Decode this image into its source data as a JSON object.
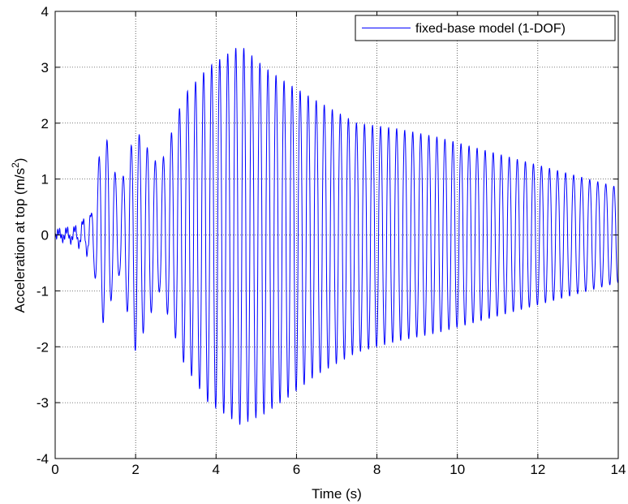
{
  "chart_data": {
    "type": "line",
    "title": "",
    "xlabel": "Time (s)",
    "ylabel_main": "Acceleration at top (m/s",
    "ylabel_sup": "2",
    "ylabel_close": ")",
    "xlim": [
      0,
      14
    ],
    "ylim": [
      -4,
      4
    ],
    "xticks": [
      0,
      2,
      4,
      6,
      8,
      10,
      12,
      14
    ],
    "xtick_labels": [
      "0",
      "2",
      "4",
      "6",
      "8",
      "10",
      "12",
      "14"
    ],
    "yticks": [
      -4,
      -3,
      -2,
      -1,
      0,
      1,
      2,
      3,
      4
    ],
    "ytick_labels": [
      "-4",
      "-3",
      "-2",
      "-1",
      "0",
      "1",
      "2",
      "3",
      "4"
    ],
    "grid": "on",
    "legend_position": "top-right",
    "series": [
      {
        "name": "fixed-base model (1-DOF)",
        "color": "#0000ff",
        "oscillation_period_s": 0.2,
        "envelope": {
          "t": [
            0.0,
            0.5,
            0.9,
            1.2,
            1.6,
            2.0,
            2.6,
            3.2,
            3.8,
            4.6,
            5.2,
            5.8,
            6.5,
            7.5,
            8.5,
            9.5,
            10.5,
            11.5,
            12.5,
            13.5,
            14.0
          ],
          "pos": [
            0.05,
            0.12,
            0.4,
            1.95,
            0.8,
            1.9,
            1.2,
            2.5,
            3.0,
            3.4,
            3.0,
            2.7,
            2.4,
            2.0,
            1.9,
            1.75,
            1.55,
            1.35,
            1.15,
            0.95,
            0.85
          ],
          "neg": [
            -0.05,
            -0.12,
            -0.4,
            -1.6,
            -0.7,
            -2.1,
            -1.0,
            -2.3,
            -3.0,
            -3.4,
            -3.2,
            -2.9,
            -2.5,
            -2.1,
            -1.9,
            -1.75,
            -1.55,
            -1.35,
            -1.15,
            -0.95,
            -0.85
          ]
        }
      }
    ]
  }
}
